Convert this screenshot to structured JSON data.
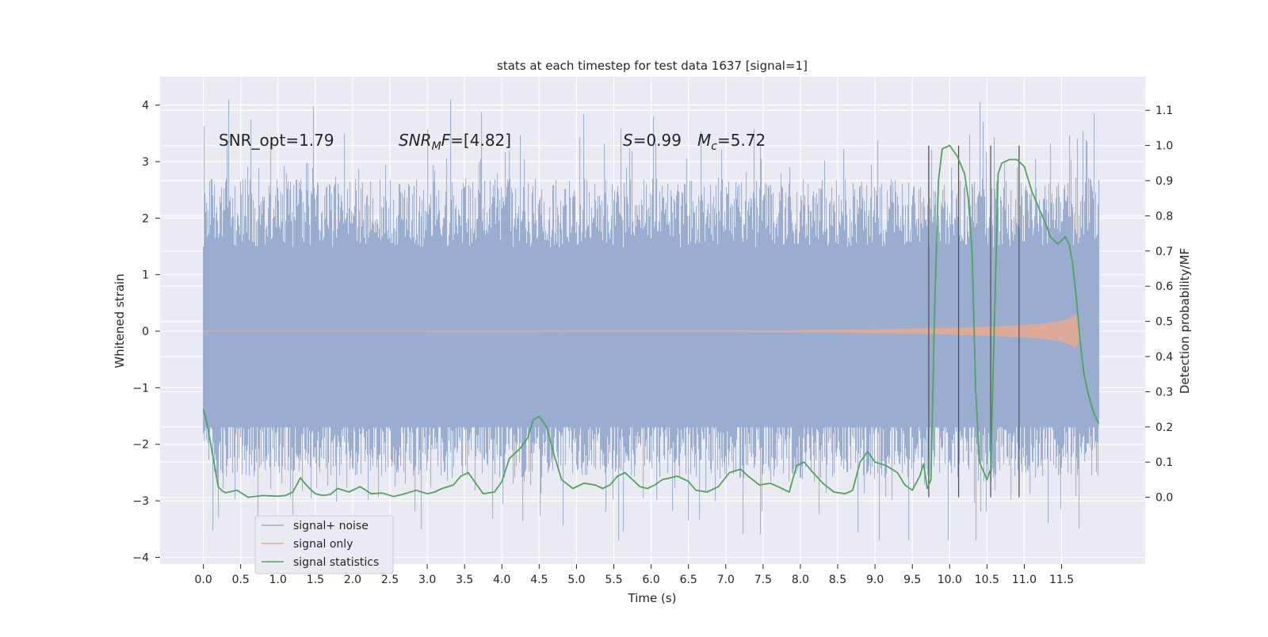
{
  "chart_data": {
    "type": "line",
    "title": "stats at each timestep for test data 1637 [signal=1]",
    "xlabel": "Time (s)",
    "ylabel_left": "Whitened strain",
    "ylabel_right": "Detection probability/MF",
    "xlim": [
      -0.58,
      12.62
    ],
    "ylim_left": [
      -4.12,
      4.5
    ],
    "ylim_right": [
      -0.19,
      1.195
    ],
    "x_ticks": [
      "0.0",
      "0.5",
      "1.0",
      "1.5",
      "2.0",
      "2.5",
      "3.0",
      "3.5",
      "4.0",
      "4.5",
      "5.0",
      "5.5",
      "6.0",
      "6.5",
      "7.0",
      "7.5",
      "8.0",
      "8.5",
      "9.0",
      "9.5",
      "10.0",
      "10.5",
      "11.0",
      "11.5"
    ],
    "y_ticks_left": [
      "4",
      "3",
      "2",
      "1",
      "0",
      "−1",
      "−2",
      "−3",
      "−4"
    ],
    "y_ticks_right": [
      "1.1",
      "1.0",
      "0.9",
      "0.8",
      "0.7",
      "0.6",
      "0.5",
      "0.4",
      "0.3",
      "0.2",
      "0.1",
      "0.0"
    ],
    "grid": true,
    "legend_position": "lower-left",
    "annotations": {
      "snr_opt": "SNR_opt=1.79",
      "snr_mf_base": "SNR",
      "snr_mf_sub": "M",
      "snr_mf_rest": "F=[4.82]",
      "s_italic": "S",
      "s_value": "=0.99",
      "mc_italic": "M",
      "mc_sub": "c",
      "mc_value": "=5.72"
    },
    "series": [
      {
        "name": "signal+ noise",
        "color": "#9aaccf",
        "x_range": [
          0.0,
          12.0
        ],
        "core_band": [
          -1.7,
          1.4
        ],
        "typical_range": [
          -2.6,
          2.7
        ],
        "extreme_range": [
          -3.7,
          4.1
        ]
      },
      {
        "name": "signal only",
        "color": "#e7a991",
        "x_range": [
          0.0,
          11.75
        ],
        "envelope": {
          "x": [
            0.0,
            7.0,
            8.0,
            9.0,
            10.0,
            10.5,
            11.0,
            11.3,
            11.55,
            11.68,
            11.72,
            11.75
          ],
          "amp": [
            0.005,
            0.01,
            0.02,
            0.035,
            0.06,
            0.08,
            0.11,
            0.14,
            0.2,
            0.3,
            0.25,
            0.0
          ]
        }
      },
      {
        "name": "signal statistics",
        "color": "#4ca75b",
        "x": [
          0.0,
          0.05,
          0.1,
          0.15,
          0.2,
          0.25,
          0.3,
          0.45,
          0.6,
          0.8,
          1.0,
          1.1,
          1.2,
          1.25,
          1.3,
          1.4,
          1.5,
          1.6,
          1.7,
          1.8,
          1.95,
          2.1,
          2.25,
          2.4,
          2.55,
          2.7,
          2.85,
          3.0,
          3.1,
          3.2,
          3.35,
          3.45,
          3.55,
          3.65,
          3.75,
          3.9,
          4.0,
          4.1,
          4.25,
          4.35,
          4.42,
          4.5,
          4.6,
          4.7,
          4.8,
          4.95,
          5.1,
          5.25,
          5.35,
          5.45,
          5.55,
          5.65,
          5.75,
          5.85,
          5.95,
          6.05,
          6.15,
          6.25,
          6.35,
          6.5,
          6.6,
          6.75,
          6.9,
          7.05,
          7.2,
          7.3,
          7.45,
          7.6,
          7.75,
          7.85,
          7.95,
          8.05,
          8.15,
          8.3,
          8.45,
          8.6,
          8.7,
          8.8,
          8.9,
          9.0,
          9.15,
          9.3,
          9.4,
          9.5,
          9.6,
          9.65,
          9.7,
          9.75,
          9.8,
          9.85,
          9.9,
          10.0,
          10.1,
          10.2,
          10.25,
          10.3,
          10.35,
          10.4,
          10.5,
          10.55,
          10.6,
          10.65,
          10.7,
          10.8,
          10.9,
          11.0,
          11.1,
          11.2,
          11.3,
          11.35,
          11.4,
          11.45,
          11.5,
          11.55,
          11.6,
          11.65,
          11.7,
          11.75,
          11.8,
          11.85,
          11.9,
          11.95,
          12.0
        ],
        "y": [
          0.25,
          0.21,
          0.15,
          0.09,
          0.03,
          0.018,
          0.013,
          0.02,
          0.0,
          0.005,
          0.003,
          0.005,
          0.015,
          0.035,
          0.055,
          0.03,
          0.01,
          0.005,
          0.008,
          0.025,
          0.015,
          0.03,
          0.01,
          0.012,
          0.002,
          0.01,
          0.02,
          0.01,
          0.015,
          0.025,
          0.035,
          0.06,
          0.07,
          0.04,
          0.01,
          0.015,
          0.045,
          0.11,
          0.14,
          0.17,
          0.22,
          0.23,
          0.2,
          0.12,
          0.05,
          0.025,
          0.04,
          0.035,
          0.025,
          0.035,
          0.06,
          0.07,
          0.05,
          0.03,
          0.025,
          0.035,
          0.05,
          0.055,
          0.06,
          0.045,
          0.02,
          0.015,
          0.03,
          0.07,
          0.08,
          0.06,
          0.035,
          0.04,
          0.025,
          0.015,
          0.09,
          0.1,
          0.075,
          0.04,
          0.015,
          0.01,
          0.02,
          0.1,
          0.13,
          0.1,
          0.09,
          0.07,
          0.035,
          0.02,
          0.06,
          0.095,
          0.025,
          0.05,
          0.55,
          0.9,
          0.99,
          1.0,
          0.97,
          0.92,
          0.85,
          0.7,
          0.3,
          0.1,
          0.05,
          0.08,
          0.5,
          0.92,
          0.95,
          0.96,
          0.96,
          0.94,
          0.87,
          0.82,
          0.77,
          0.74,
          0.73,
          0.72,
          0.73,
          0.74,
          0.72,
          0.66,
          0.56,
          0.44,
          0.35,
          0.3,
          0.26,
          0.23,
          0.21
        ]
      }
    ],
    "vertical_markers_x": [
      9.72,
      10.12,
      10.55,
      10.93
    ],
    "vertical_markers_range": [
      0.0,
      1.0
    ]
  }
}
